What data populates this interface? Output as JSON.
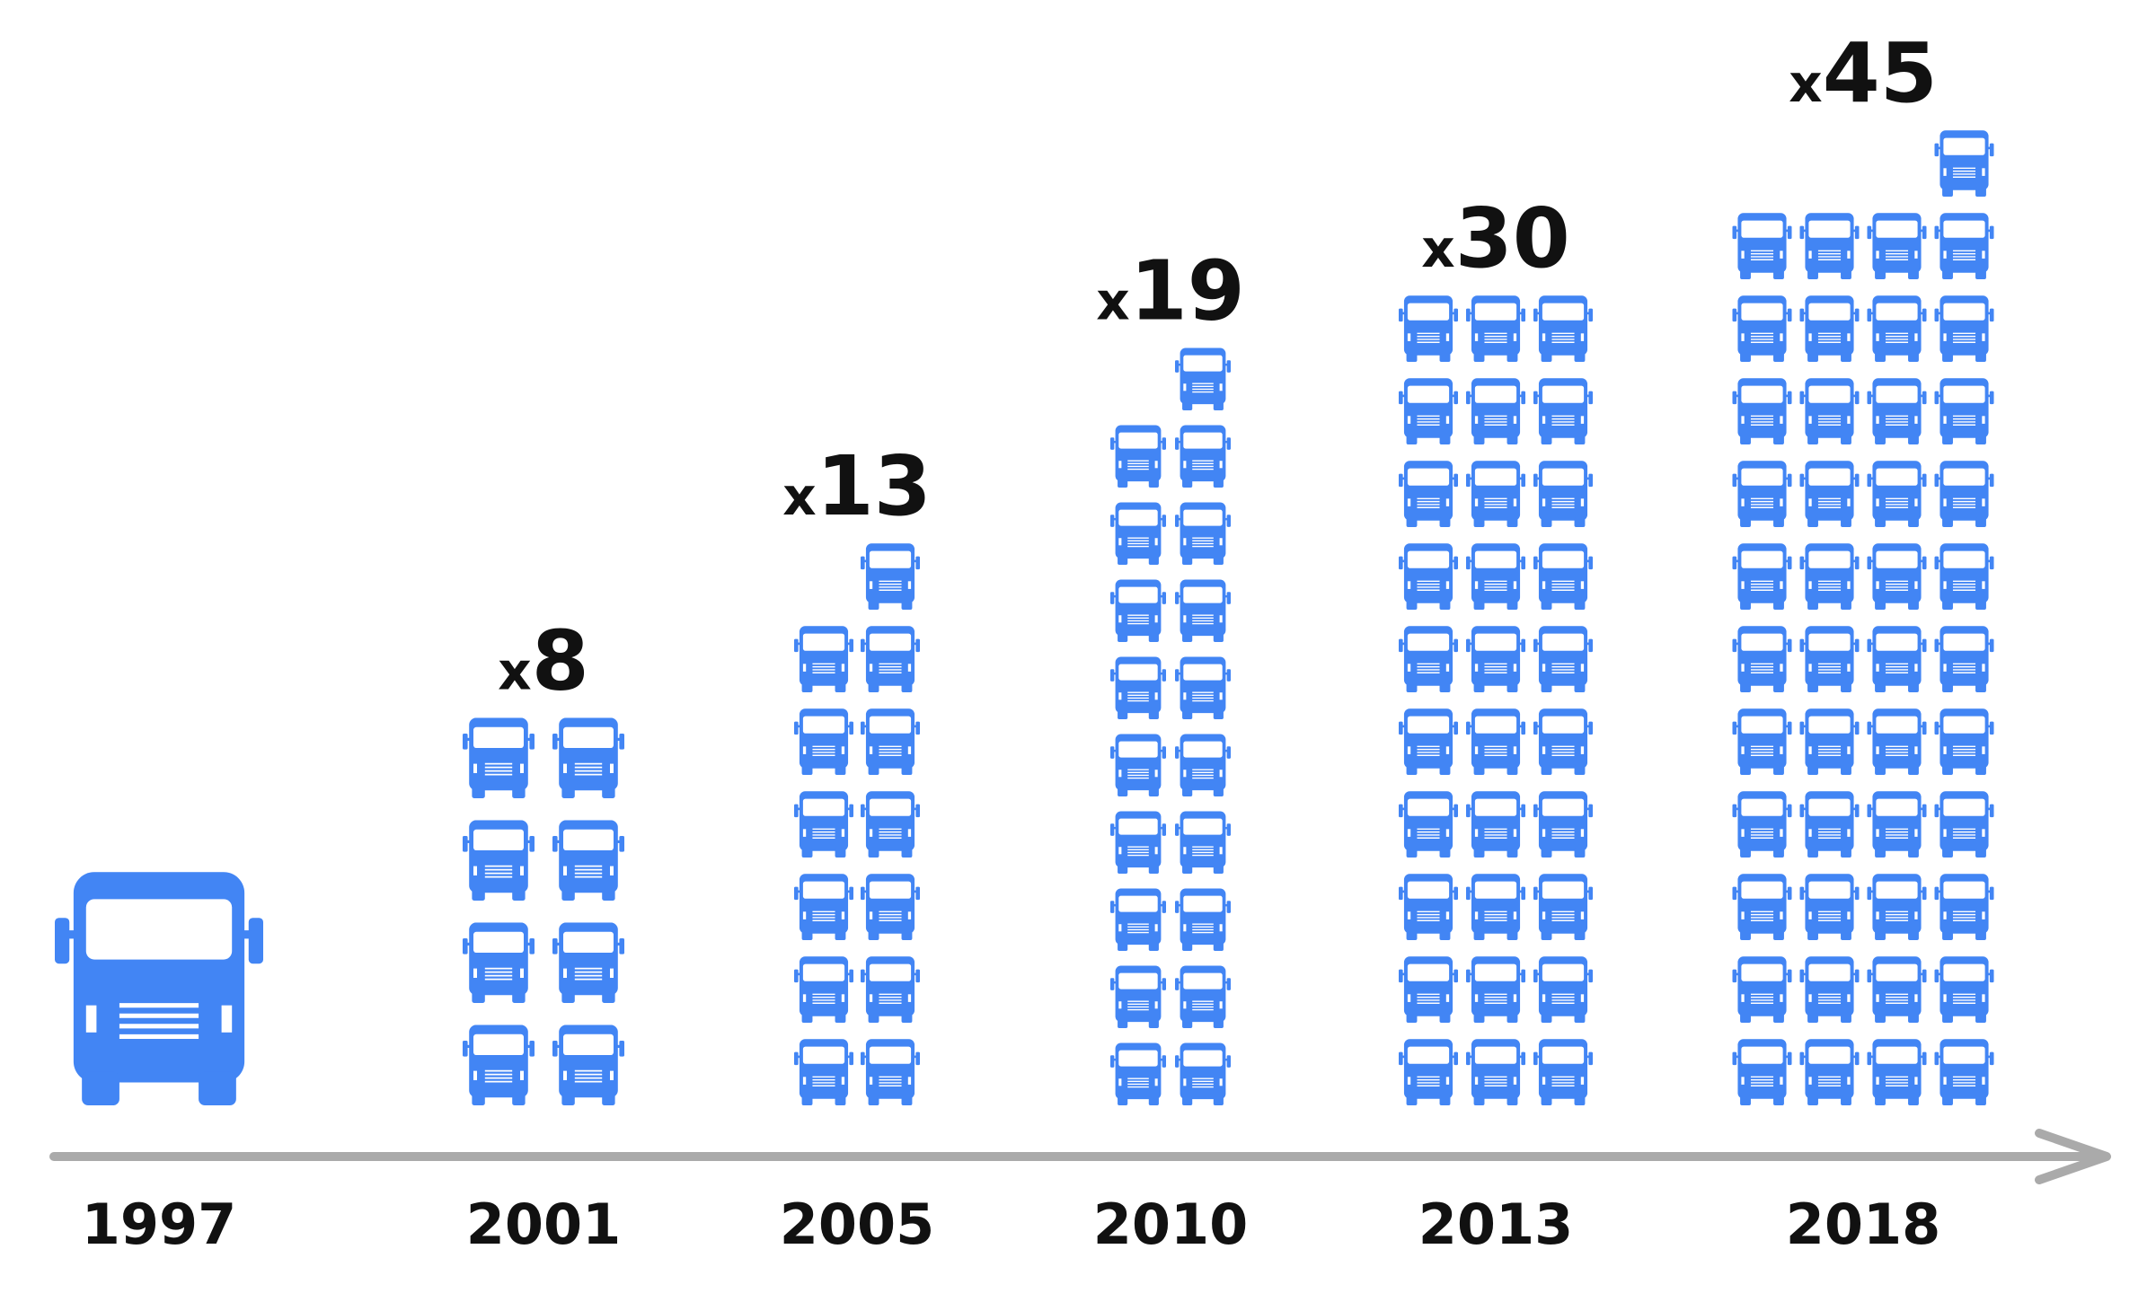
{
  "chart_data": {
    "type": "pictogram",
    "categories": [
      "1997",
      "2001",
      "2005",
      "2010",
      "2013",
      "2018"
    ],
    "values": [
      1,
      8,
      13,
      19,
      30,
      45
    ],
    "value_labels": [
      null,
      "x8",
      "x13",
      "x19",
      "x30",
      "x45"
    ],
    "color": "#4285f4"
  }
}
